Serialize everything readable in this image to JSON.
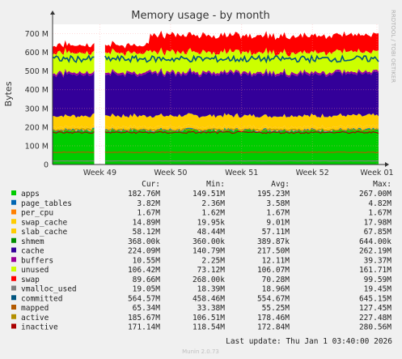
{
  "chart_data": {
    "type": "area",
    "title": "Memory usage - by month",
    "ylabel": "Bytes",
    "side_label": "RRDTOOL / TOBI OETIKER",
    "ylim": [
      0,
      750000000
    ],
    "y_ticks": [
      {
        "value": 0,
        "label": "0"
      },
      {
        "value": 100000000,
        "label": "100 M"
      },
      {
        "value": 200000000,
        "label": "200 M"
      },
      {
        "value": 300000000,
        "label": "300 M"
      },
      {
        "value": 400000000,
        "label": "400 M"
      },
      {
        "value": 500000000,
        "label": "500 M"
      },
      {
        "value": 600000000,
        "label": "600 M"
      },
      {
        "value": 700000000,
        "label": "700 M"
      }
    ],
    "x_ticks": [
      {
        "pos": 0.145,
        "label": "Week 49"
      },
      {
        "pos": 0.362,
        "label": "Week 50"
      },
      {
        "pos": 0.58,
        "label": "Week 51"
      },
      {
        "pos": 0.797,
        "label": "Week 52"
      },
      {
        "pos": 0.995,
        "label": "Week 01"
      }
    ],
    "gap": [
      0.13,
      0.16
    ],
    "columns": [
      "Cur:",
      "Min:",
      "Avg:",
      "Max:"
    ],
    "series": [
      {
        "name": "apps",
        "color": "#00cc00",
        "kind": "area",
        "cur": "182.76M",
        "min": "149.51M",
        "avg": "195.23M",
        "max": "267.00M",
        "level": 182760000
      },
      {
        "name": "page_tables",
        "color": "#0066b3",
        "kind": "area",
        "cur": "3.82M",
        "min": "2.36M",
        "avg": "3.58M",
        "max": "4.82M",
        "level": 3820000
      },
      {
        "name": "per_cpu",
        "color": "#ff8000",
        "kind": "area",
        "cur": "1.67M",
        "min": "1.62M",
        "avg": "1.67M",
        "max": "1.67M",
        "level": 1670000
      },
      {
        "name": "swap_cache",
        "color": "#ffcc00",
        "kind": "area",
        "cur": "14.89M",
        "min": "19.95k",
        "avg": "9.01M",
        "max": "17.98M",
        "level": 14890000
      },
      {
        "name": "slab_cache",
        "color": "#ffcc00",
        "kind": "area",
        "cur": "58.12M",
        "min": "48.44M",
        "avg": "57.11M",
        "max": "67.85M",
        "level": 58120000
      },
      {
        "name": "shmem",
        "color": "#008f00",
        "kind": "area",
        "cur": "368.00k",
        "min": "360.00k",
        "avg": "389.87k",
        "max": "644.00k",
        "level": 368000
      },
      {
        "name": "cache",
        "color": "#330099",
        "kind": "area",
        "cur": "224.09M",
        "min": "140.79M",
        "avg": "217.50M",
        "max": "262.19M",
        "level": 224090000
      },
      {
        "name": "buffers",
        "color": "#990099",
        "kind": "area",
        "cur": "10.55M",
        "min": "2.25M",
        "avg": "12.11M",
        "max": "39.37M",
        "level": 10550000
      },
      {
        "name": "unused",
        "color": "#ccff00",
        "kind": "area",
        "cur": "106.42M",
        "min": "73.12M",
        "avg": "106.07M",
        "max": "161.71M",
        "level": 106420000
      },
      {
        "name": "swap",
        "color": "#ff0000",
        "kind": "area",
        "cur": "89.66M",
        "min": "268.00k",
        "avg": "70.28M",
        "max": "99.59M",
        "level": 89660000
      },
      {
        "name": "vmalloc_used",
        "color": "#808080",
        "kind": "line",
        "cur": "19.05M",
        "min": "18.39M",
        "avg": "18.96M",
        "max": "19.45M",
        "level": 19050000
      },
      {
        "name": "committed",
        "color": "#005580",
        "kind": "line",
        "cur": "564.57M",
        "min": "458.46M",
        "avg": "554.67M",
        "max": "645.15M",
        "level": 564570000
      },
      {
        "name": "mapped",
        "color": "#b35a00",
        "kind": "line",
        "cur": "65.34M",
        "min": "33.38M",
        "avg": "55.25M",
        "max": "127.45M",
        "level": 65340000
      },
      {
        "name": "active",
        "color": "#b38f00",
        "kind": "line",
        "cur": "185.67M",
        "min": "106.51M",
        "avg": "178.46M",
        "max": "227.48M",
        "level": 185670000
      },
      {
        "name": "inactive",
        "color": "#aa0000",
        "kind": "line",
        "cur": "171.14M",
        "min": "118.54M",
        "avg": "172.84M",
        "max": "280.56M",
        "level": 171140000
      }
    ],
    "last_update": "Last update: Thu Jan  1 03:40:00 2026",
    "footer": "Munin 2.0.73",
    "grid": true
  }
}
